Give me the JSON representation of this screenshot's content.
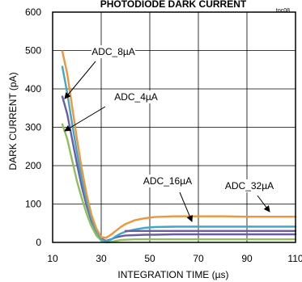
{
  "chart_data": {
    "type": "line",
    "title": "PHOTODIODE DARK CURRENT",
    "figure_id": "toc08",
    "xlabel": "INTEGRATION TIME (µs)",
    "ylabel": "DARK CURRENT (pA)",
    "xlim": [
      10,
      110
    ],
    "ylim": [
      0,
      600
    ],
    "xticks": [
      10,
      30,
      50,
      70,
      90,
      110
    ],
    "yticks": [
      0,
      100,
      200,
      300,
      400,
      500,
      600
    ],
    "xtick_labels": [
      "10",
      "30",
      "50",
      "70",
      "90",
      "110"
    ],
    "ytick_labels": [
      "0",
      "100",
      "200",
      "300",
      "400",
      "500",
      "600"
    ],
    "grid": true,
    "annotations": [
      "ADC_8µA",
      "ADC_4µA",
      "ADC_16µA",
      "ADC_32µA"
    ],
    "series": [
      {
        "name": "ADC_8µA",
        "color": "#6b5ca8",
        "x": [
          14,
          16,
          18,
          20,
          22,
          24,
          26,
          28,
          30,
          32,
          34,
          36,
          38,
          40,
          44,
          48,
          52,
          60,
          70,
          80,
          90,
          100,
          110
        ],
        "y": [
          380,
          335,
          270,
          205,
          145,
          95,
          55,
          28,
          10,
          4,
          8,
          13,
          16,
          18,
          19,
          20,
          20,
          21,
          21,
          21,
          21,
          21,
          21
        ]
      },
      {
        "name": "ADC_4µA",
        "color": "#8fbf5c",
        "x": [
          14,
          16,
          18,
          20,
          22,
          24,
          26,
          28,
          30,
          32,
          34,
          36,
          38,
          40,
          44,
          48,
          52,
          60,
          70,
          80,
          90,
          100,
          110
        ],
        "y": [
          308,
          270,
          215,
          160,
          115,
          75,
          42,
          18,
          5,
          0,
          1,
          4,
          6,
          7,
          8,
          8,
          8,
          8,
          8,
          8,
          8,
          8,
          8
        ]
      },
      {
        "name": "ADC_16µA",
        "color": "#3fa7c7",
        "x": [
          14,
          16,
          18,
          20,
          22,
          24,
          26,
          28,
          30,
          32,
          34,
          36,
          38,
          40,
          44,
          48,
          52,
          60,
          70,
          80,
          90,
          100,
          110
        ],
        "y": [
          458,
          390,
          310,
          235,
          165,
          108,
          62,
          28,
          8,
          2,
          7,
          16,
          23,
          28,
          34,
          38,
          40,
          41,
          41,
          41,
          41,
          41,
          41
        ]
      },
      {
        "name": "ADC_32µA",
        "color": "#f0953a",
        "x": [
          14,
          16,
          18,
          20,
          22,
          24,
          26,
          28,
          30,
          32,
          34,
          36,
          38,
          40,
          44,
          48,
          52,
          60,
          70,
          80,
          90,
          100,
          110
        ],
        "y": [
          498,
          440,
          355,
          270,
          192,
          125,
          72,
          36,
          14,
          12,
          20,
          30,
          40,
          48,
          58,
          63,
          66,
          68,
          68,
          68,
          67,
          67,
          67
        ]
      }
    ],
    "overlay_series": {
      "name": "",
      "color": "#6b5ca8",
      "x": [
        40,
        50,
        60,
        70,
        80,
        90,
        100,
        110
      ],
      "y": [
        30,
        30,
        30,
        30,
        30,
        30,
        30,
        30
      ]
    },
    "axis_color": "#000000",
    "grid_color": "#000000"
  }
}
